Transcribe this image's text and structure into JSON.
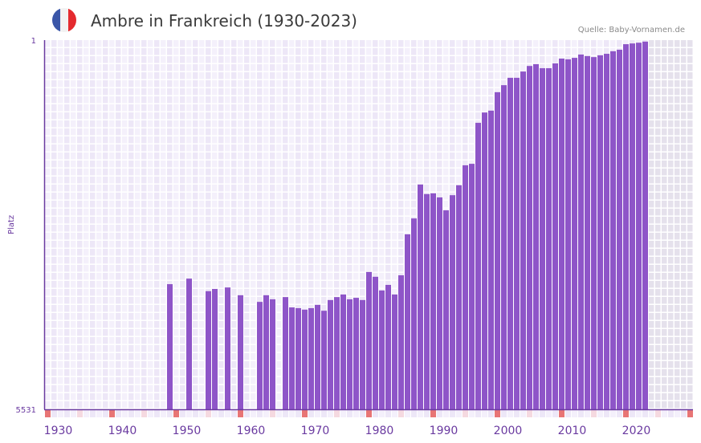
{
  "header": {
    "title": "Ambre in Frankreich (1930-2023)",
    "source": "Quelle: Baby-Vornamen.de",
    "flag_icon": "france-flag-icon"
  },
  "colors": {
    "bar": "#8e55c8",
    "axis": "#6a3aa0",
    "decade_marker": "#e87575",
    "half_decade_marker": "#f5d9e0",
    "cell_a": "#f4f0fb",
    "cell_b": "#ede7f7",
    "future_cell": "#e5e1ec"
  },
  "chart_data": {
    "type": "bar",
    "title": "Ambre in Frankreich (1930-2023)",
    "xlabel": "",
    "ylabel": "Platz",
    "y_axis": {
      "top_label": "1",
      "bottom_label": "5531",
      "inverted": true
    },
    "x_range": [
      1928,
      2028
    ],
    "x_ticks": [
      "1930",
      "1940",
      "1950",
      "1960",
      "1970",
      "1980",
      "1990",
      "2000",
      "2010",
      "2020"
    ],
    "value_meaning": "bar level as fraction of axis (0 = Platz 5531, 1 = Platz 1)",
    "grid": true,
    "years": [
      1947,
      1950,
      1953,
      1954,
      1956,
      1958,
      1961,
      1962,
      1963,
      1965,
      1966,
      1967,
      1968,
      1969,
      1970,
      1971,
      1972,
      1973,
      1974,
      1975,
      1976,
      1977,
      1978,
      1979,
      1980,
      1981,
      1982,
      1983,
      1984,
      1985,
      1986,
      1987,
      1988,
      1989,
      1990,
      1991,
      1992,
      1993,
      1994,
      1995,
      1996,
      1997,
      1998,
      1999,
      2000,
      2001,
      2002,
      2003,
      2004,
      2005,
      2006,
      2007,
      2008,
      2009,
      2010,
      2011,
      2012,
      2013,
      2014,
      2015,
      2016,
      2017,
      2018,
      2019,
      2020,
      2021
    ],
    "values": [
      0.339,
      0.354,
      0.32,
      0.326,
      0.33,
      0.309,
      0.291,
      0.309,
      0.298,
      0.304,
      0.276,
      0.274,
      0.27,
      0.274,
      0.283,
      0.267,
      0.296,
      0.304,
      0.311,
      0.298,
      0.302,
      0.296,
      0.372,
      0.359,
      0.322,
      0.337,
      0.311,
      0.363,
      0.474,
      0.517,
      0.609,
      0.583,
      0.585,
      0.574,
      0.539,
      0.58,
      0.607,
      0.661,
      0.665,
      0.776,
      0.804,
      0.809,
      0.859,
      0.878,
      0.898,
      0.898,
      0.915,
      0.93,
      0.935,
      0.924,
      0.924,
      0.937,
      0.95,
      0.948,
      0.952,
      0.961,
      0.957,
      0.954,
      0.959,
      0.963,
      0.97,
      0.974,
      0.989,
      0.991,
      0.993,
      0.996
    ],
    "data_end_year": 2023
  }
}
